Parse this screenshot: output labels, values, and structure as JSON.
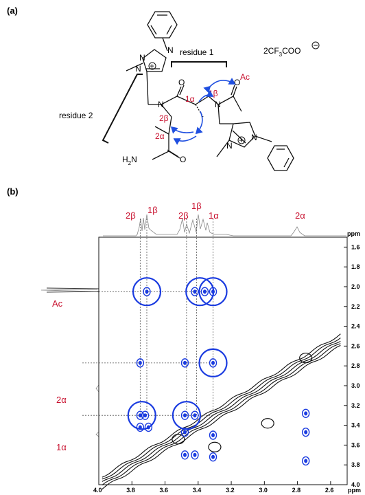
{
  "panel_a": {
    "label": "(a)",
    "counter_ion": "2CF",
    "counter_ion_sub": "3",
    "counter_ion_tail": "COO",
    "residue1_label": "residue 1",
    "residue2_label": "residue 2",
    "atom_labels": {
      "one_alpha": "1α",
      "one_beta": "1β",
      "two_alpha": "2α",
      "two_beta": "2β",
      "ac": "Ac",
      "n": "N",
      "o": "O",
      "h2n_prefix": "H",
      "h2n_sub": "2",
      "h2n_suffix": "N",
      "plus": "+"
    },
    "colors": {
      "highlight_red": "#c8102e",
      "arrow_blue": "#1f4fe0"
    }
  },
  "panel_b": {
    "label": "(b)",
    "axis_unit": "ppm",
    "projection_labels": [
      "2β",
      "1β",
      "2β",
      "1β",
      "1α",
      "2α"
    ],
    "row_labels": [
      "Ac",
      "2α",
      "1α"
    ],
    "colors": {
      "noe_blue": "#1a3be0",
      "contour_black": "#111111",
      "label_red": "#c8102e"
    }
  },
  "chart_data": {
    "type": "heatmap",
    "title": "",
    "xlabel": "ppm",
    "ylabel": "ppm",
    "xlim": [
      4.0,
      2.5
    ],
    "ylim": [
      4.0,
      1.5
    ],
    "x_ticks": [
      "4.0",
      "3.8",
      "3.6",
      "3.4",
      "3.2",
      "3.0",
      "2.8",
      "2.6"
    ],
    "y_ticks": [
      "1.6",
      "1.8",
      "2.0",
      "2.2",
      "2.4",
      "2.6",
      "2.8",
      "3.0",
      "3.2",
      "3.4",
      "3.6",
      "3.8",
      "4.0"
    ],
    "circled_cross_peaks": [
      {
        "x": 3.71,
        "y": 2.05
      },
      {
        "x": 3.39,
        "y": 2.05
      },
      {
        "x": 3.31,
        "y": 2.05
      },
      {
        "x": 3.31,
        "y": 2.77
      },
      {
        "x": 3.74,
        "y": 3.3
      },
      {
        "x": 3.47,
        "y": 3.3
      }
    ],
    "blue_cross_peaks": [
      {
        "x": 3.71,
        "y": 2.05
      },
      {
        "x": 3.42,
        "y": 2.05
      },
      {
        "x": 3.36,
        "y": 2.05
      },
      {
        "x": 3.31,
        "y": 2.05
      },
      {
        "x": 3.75,
        "y": 2.77
      },
      {
        "x": 3.48,
        "y": 2.77
      },
      {
        "x": 3.31,
        "y": 2.77
      },
      {
        "x": 3.75,
        "y": 3.3
      },
      {
        "x": 3.72,
        "y": 3.3
      },
      {
        "x": 3.48,
        "y": 3.3
      },
      {
        "x": 3.42,
        "y": 3.3
      },
      {
        "x": 3.75,
        "y": 3.42
      },
      {
        "x": 3.7,
        "y": 3.42
      },
      {
        "x": 3.48,
        "y": 3.47
      },
      {
        "x": 3.31,
        "y": 3.5
      },
      {
        "x": 3.48,
        "y": 3.7
      },
      {
        "x": 3.42,
        "y": 3.7
      },
      {
        "x": 3.31,
        "y": 3.72
      },
      {
        "x": 2.75,
        "y": 3.28
      },
      {
        "x": 2.75,
        "y": 3.47
      },
      {
        "x": 2.75,
        "y": 3.76
      }
    ],
    "dashed_guides_x": [
      3.75,
      3.71,
      3.47,
      3.41,
      3.31
    ],
    "dashed_guides_y": [
      2.05,
      2.77,
      3.3
    ],
    "grid": false
  }
}
